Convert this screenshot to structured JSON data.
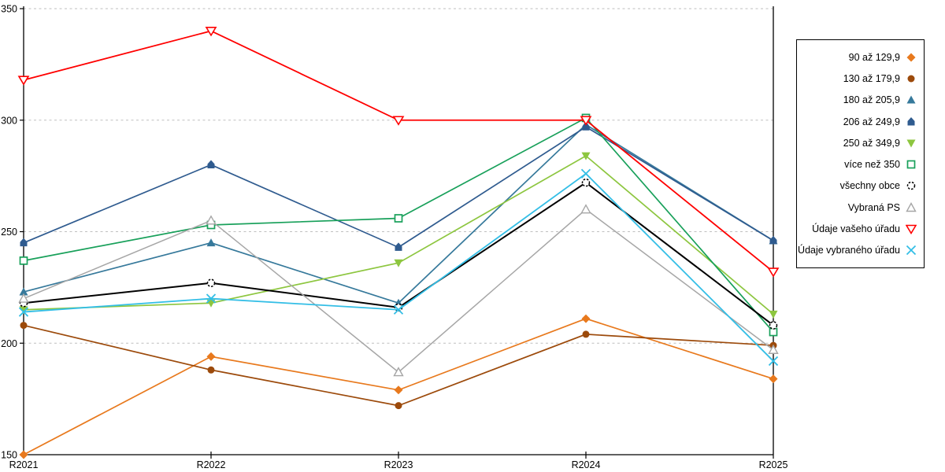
{
  "chart_data": {
    "type": "line",
    "title": "",
    "xlabel": "",
    "ylabel": "",
    "categories": [
      "R2021",
      "R2022",
      "R2023",
      "R2024",
      "R2025"
    ],
    "ylim": [
      150,
      350
    ],
    "yticks": [
      150,
      200,
      250,
      300,
      350
    ],
    "grid": "horizontal-dashed",
    "grid_color": "#bfbfbf",
    "axis_color": "#000000",
    "legend_position": "right-box",
    "series": [
      {
        "name": "90 až 129,9",
        "marker": "diamond",
        "color": "#e8791d",
        "line_width": 1.7,
        "values": [
          150,
          194,
          179,
          211,
          184
        ]
      },
      {
        "name": "130 až 179,9",
        "marker": "circle",
        "color": "#9c4a0b",
        "line_width": 1.7,
        "values": [
          208,
          188,
          172,
          204,
          199
        ]
      },
      {
        "name": "180 až 205,9",
        "marker": "triangle-up",
        "color": "#36799b",
        "line_width": 1.7,
        "values": [
          223,
          245,
          218,
          298,
          246
        ]
      },
      {
        "name": "206 až 249,9",
        "marker": "pentagon",
        "color": "#2f5b8f",
        "line_width": 1.7,
        "values": [
          245,
          280,
          243,
          297,
          246
        ]
      },
      {
        "name": "250 až 349,9",
        "marker": "triangle-down",
        "color": "#8dc63f",
        "line_width": 1.7,
        "values": [
          215,
          218,
          236,
          284,
          213
        ]
      },
      {
        "name": "více než 350",
        "marker": "square-open",
        "color": "#18a05a",
        "line_width": 1.7,
        "values": [
          237,
          253,
          256,
          301,
          205
        ]
      },
      {
        "name": "všechny obce",
        "marker": "circle-open-dashed",
        "color": "#000000",
        "line_width": 2.0,
        "values": [
          218,
          227,
          216,
          272,
          208
        ]
      },
      {
        "name": "Vybraná PS",
        "marker": "triangle-up-open",
        "color": "#a6a6a6",
        "line_width": 1.5,
        "values": [
          220,
          255,
          187,
          260,
          197
        ]
      },
      {
        "name": "Údaje vašeho úřadu",
        "marker": "triangle-down-open",
        "color": "#ff0000",
        "line_width": 1.8,
        "values": [
          318,
          340,
          300,
          300,
          232
        ]
      },
      {
        "name": "Údaje vybraného úřadu",
        "marker": "x",
        "color": "#33bee6",
        "line_width": 1.8,
        "values": [
          214,
          220,
          215,
          276,
          192
        ]
      }
    ]
  }
}
